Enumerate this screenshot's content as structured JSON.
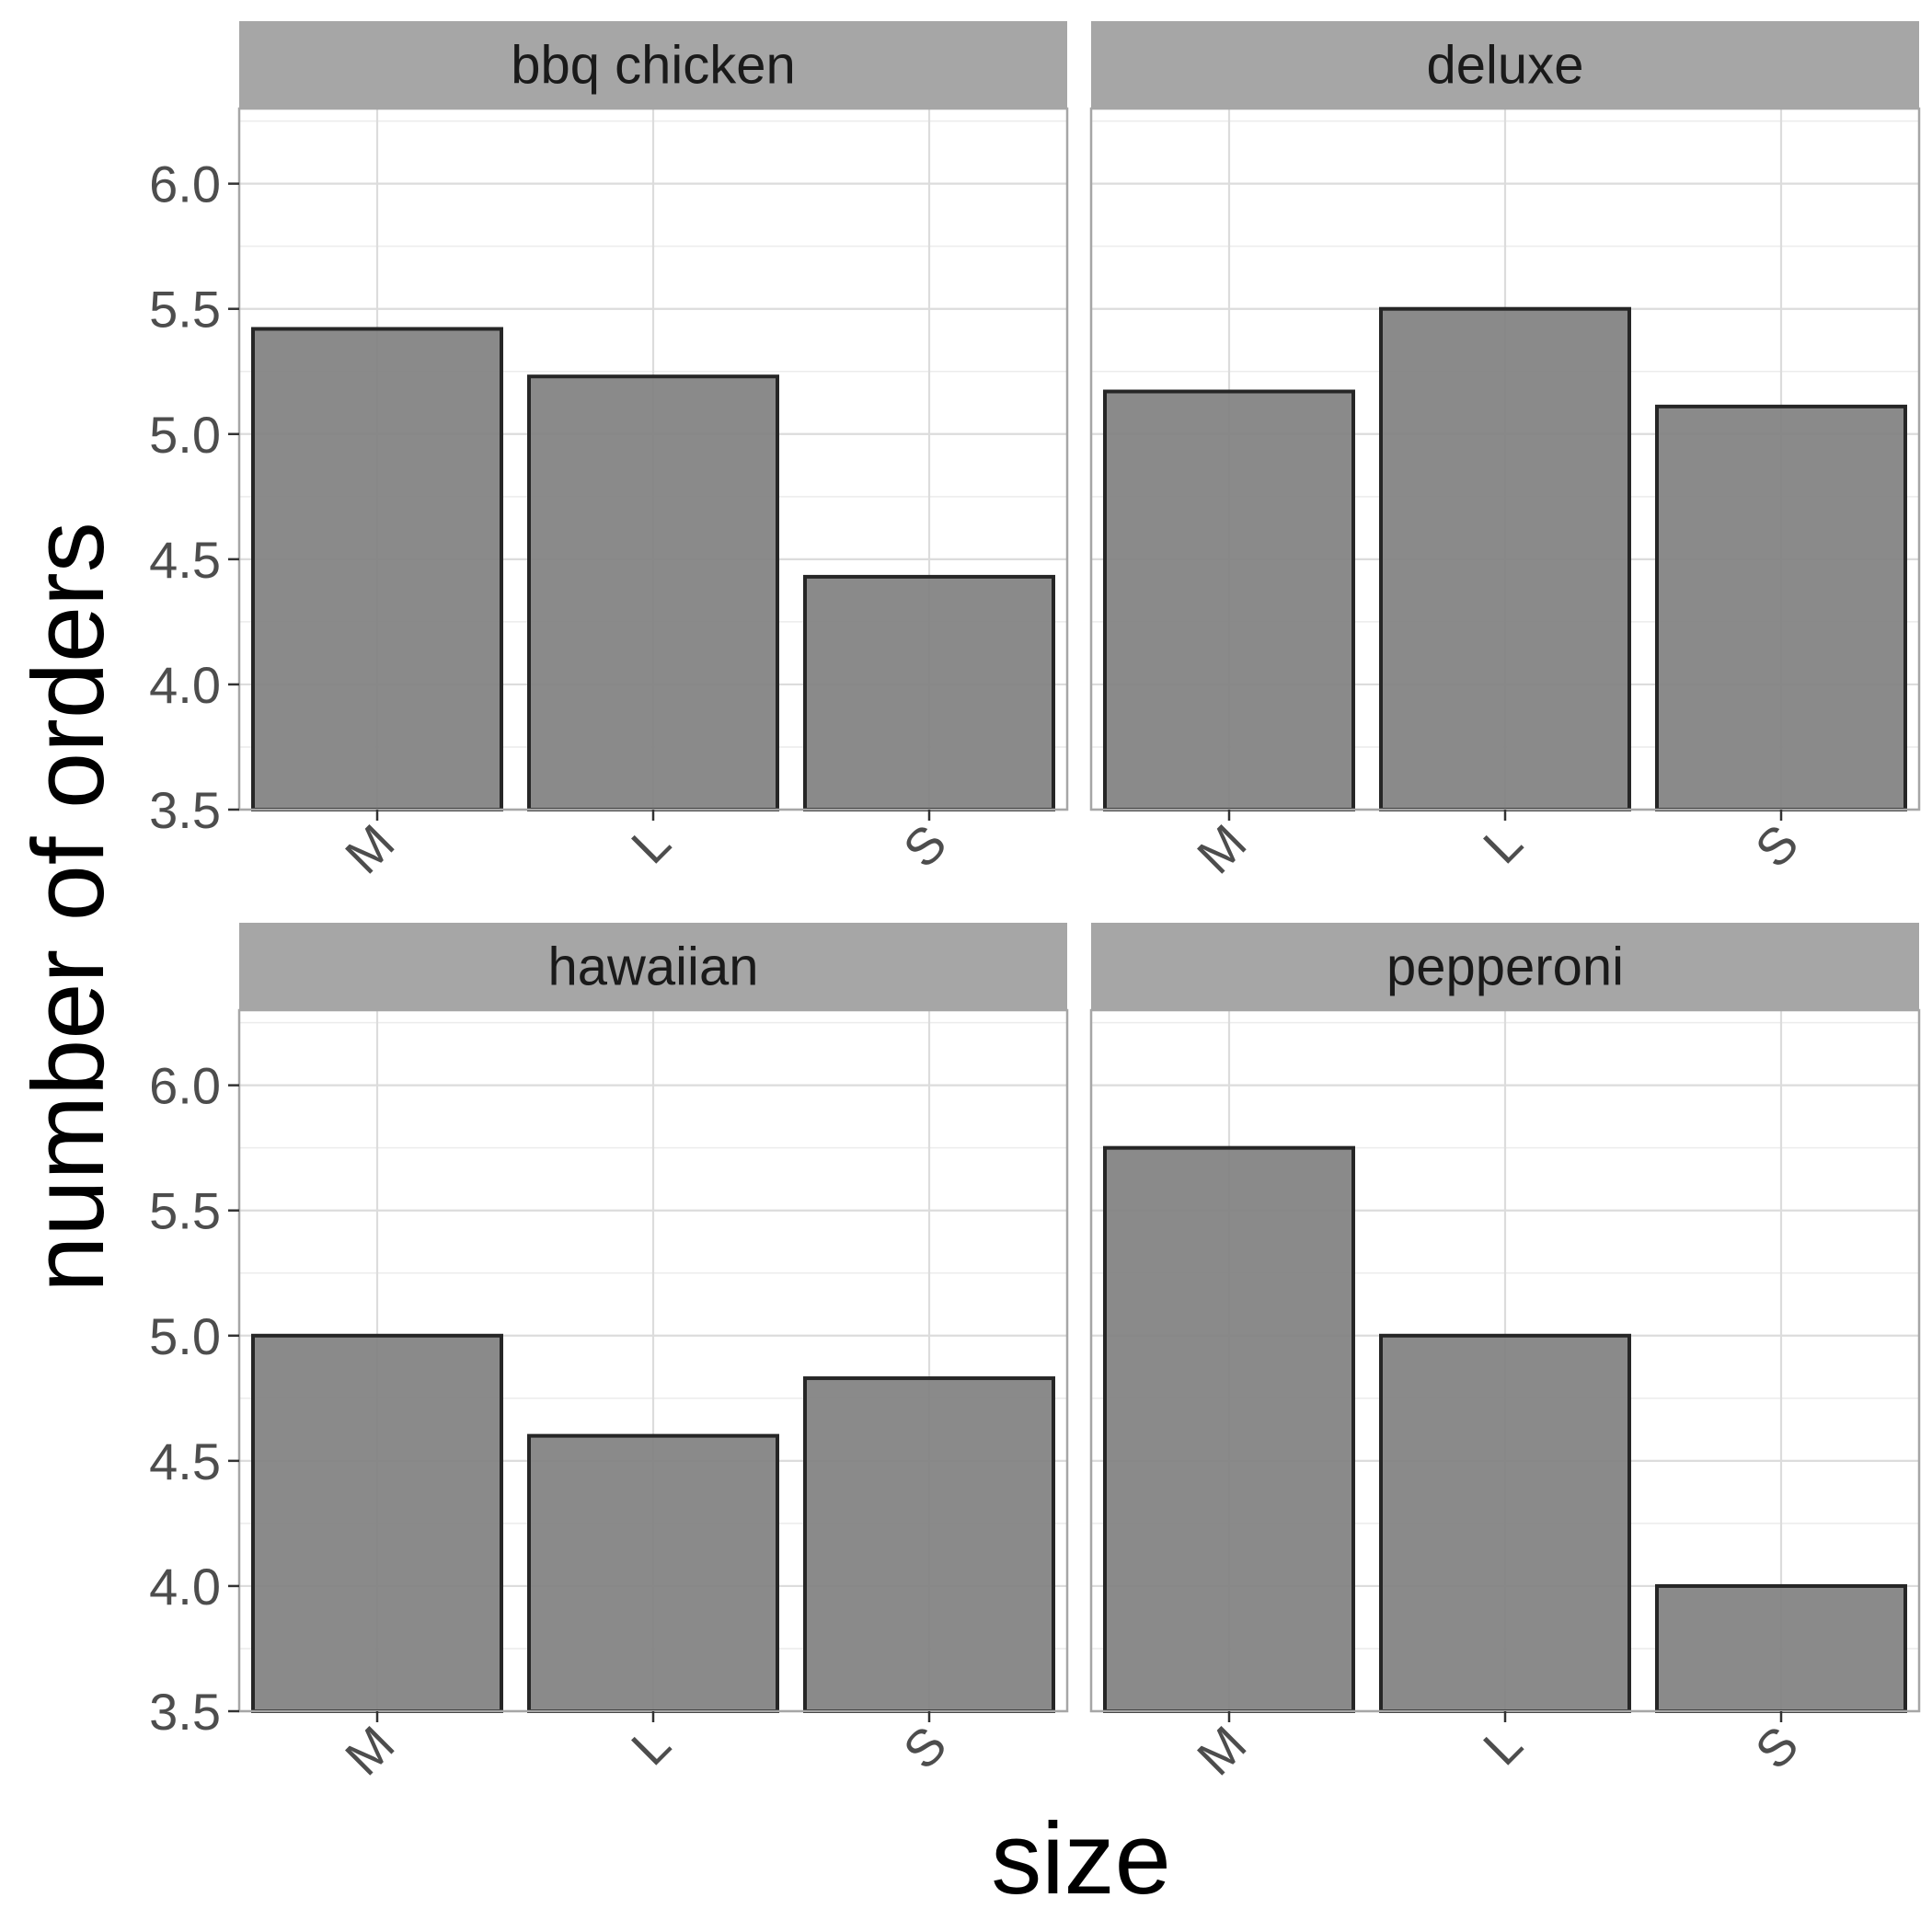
{
  "chart_data": {
    "type": "bar",
    "layout": "facet-grid 2x2",
    "xlabel": "size",
    "ylabel": "number of orders",
    "categories": [
      "M",
      "L",
      "S"
    ],
    "ylim": [
      3.5,
      6.3
    ],
    "yticks": [
      3.5,
      4.0,
      4.5,
      5.0,
      5.5,
      6.0
    ],
    "ytick_labels": [
      "3.5",
      "4.0",
      "4.5",
      "5.0",
      "5.5",
      "6.0"
    ],
    "grid": true,
    "legend": "none",
    "bar_fill": "#808080",
    "bar_outline": "#262626",
    "strip_fill": "#a6a6a6",
    "panel_border": "#a6a6a6",
    "grid_color": "#dcdcdc",
    "panels": [
      {
        "title": "bbq chicken",
        "values": [
          5.42,
          5.23,
          4.43
        ]
      },
      {
        "title": "deluxe",
        "values": [
          5.17,
          5.5,
          5.11
        ]
      },
      {
        "title": "hawaiian",
        "values": [
          5.0,
          4.6,
          4.83
        ]
      },
      {
        "title": "pepperoni",
        "values": [
          5.75,
          5.0,
          4.0
        ]
      }
    ]
  }
}
